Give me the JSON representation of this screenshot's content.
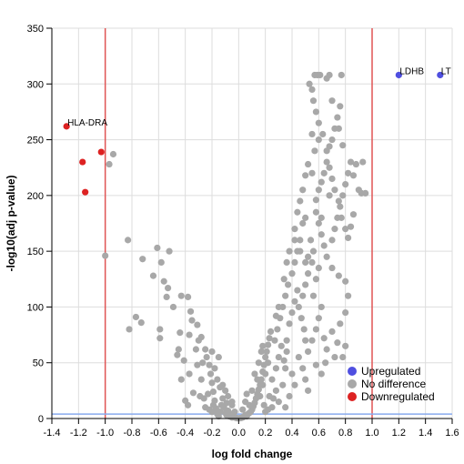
{
  "chart_data": {
    "type": "scatter",
    "xlabel": "log fold change",
    "ylabel": "-log10(adj p-value)",
    "xlim": [
      -1.4,
      1.6
    ],
    "ylim": [
      0,
      350
    ],
    "xticks": [
      -1.4,
      -1.2,
      -1.0,
      -0.8,
      -0.6,
      -0.4,
      -0.2,
      0.0,
      0.2,
      0.4,
      0.6,
      0.8,
      1.0,
      1.2,
      1.4,
      1.6
    ],
    "xtick_labels": [
      "-1.4",
      "-1.2",
      "-1.0",
      "-0.8",
      "-0.6",
      "-0.4",
      "-0.2",
      "0.0",
      "0.2",
      "0.4",
      "0.6",
      "0.8",
      "1.0",
      "1.2",
      "1.4",
      "1.6"
    ],
    "yticks": [
      0,
      50,
      100,
      150,
      200,
      250,
      300,
      350
    ],
    "ytick_labels": [
      "0",
      "50",
      "100",
      "150",
      "200",
      "250",
      "300",
      "350"
    ],
    "grid": true,
    "legend_position": "bottom-right",
    "thresholds": {
      "fold_change_lines": [
        -1.0,
        1.0
      ],
      "fold_change_color": "#e05555",
      "pvalue_line": 4,
      "pvalue_color": "#88aaee"
    },
    "series": [
      {
        "name": "Upregulated",
        "color": "#4f4fe0",
        "points": [
          [
            1.2,
            308
          ],
          [
            1.51,
            308
          ]
        ]
      },
      {
        "name": "No difference",
        "color": "#a8a8a8",
        "points": [
          [
            -0.97,
            228
          ],
          [
            -0.94,
            237
          ],
          [
            -1.0,
            146
          ],
          [
            -0.83,
            160
          ],
          [
            -0.72,
            143
          ],
          [
            -0.64,
            128
          ],
          [
            -0.61,
            153
          ],
          [
            -0.58,
            140
          ],
          [
            -0.56,
            123
          ],
          [
            -0.54,
            109
          ],
          [
            -0.53,
            117
          ],
          [
            -0.52,
            150
          ],
          [
            -0.49,
            100
          ],
          [
            -0.43,
            110
          ],
          [
            -0.38,
            109
          ],
          [
            -0.36,
            96
          ],
          [
            -0.35,
            88
          ],
          [
            -0.31,
            84
          ],
          [
            -0.28,
            73
          ],
          [
            -0.77,
            91
          ],
          [
            -0.73,
            86
          ],
          [
            -0.59,
            80
          ],
          [
            -0.59,
            72
          ],
          [
            -0.82,
            80
          ],
          [
            -0.44,
            77
          ],
          [
            -0.45,
            62
          ],
          [
            -0.37,
            75
          ],
          [
            -0.32,
            62
          ],
          [
            -0.41,
            52
          ],
          [
            -0.37,
            40
          ],
          [
            -0.31,
            48
          ],
          [
            -0.43,
            35
          ],
          [
            -0.34,
            23
          ],
          [
            -0.4,
            16
          ],
          [
            -0.38,
            12
          ],
          [
            -0.46,
            57
          ],
          [
            -0.3,
            70
          ],
          [
            -0.27,
            50
          ],
          [
            -0.28,
            35
          ],
          [
            -0.29,
            20
          ],
          [
            -0.25,
            62
          ],
          [
            -0.24,
            55
          ],
          [
            -0.22,
            48
          ],
          [
            -0.21,
            40
          ],
          [
            -0.2,
            32
          ],
          [
            -0.19,
            24
          ],
          [
            -0.18,
            16
          ],
          [
            -0.17,
            9
          ],
          [
            -0.16,
            4
          ],
          [
            -0.15,
            2
          ],
          [
            -0.14,
            6
          ],
          [
            -0.13,
            12
          ],
          [
            -0.12,
            18
          ],
          [
            -0.11,
            10
          ],
          [
            -0.1,
            5
          ],
          [
            -0.09,
            3
          ],
          [
            -0.08,
            7
          ],
          [
            -0.07,
            2
          ],
          [
            -0.06,
            4
          ],
          [
            -0.05,
            1
          ],
          [
            -0.04,
            2
          ],
          [
            -0.03,
            1
          ],
          [
            -0.02,
            0.5
          ],
          [
            -0.01,
            0.3
          ],
          [
            0.01,
            0.3
          ],
          [
            0.02,
            0.5
          ],
          [
            0.03,
            1
          ],
          [
            0.04,
            2
          ],
          [
            0.05,
            3
          ],
          [
            0.06,
            2
          ],
          [
            0.07,
            4
          ],
          [
            0.08,
            5
          ],
          [
            0.09,
            6
          ],
          [
            0.1,
            8
          ],
          [
            0.11,
            11
          ],
          [
            0.12,
            14
          ],
          [
            0.13,
            18
          ],
          [
            0.14,
            22
          ],
          [
            0.15,
            26
          ],
          [
            0.16,
            30
          ],
          [
            0.17,
            35
          ],
          [
            0.18,
            42
          ],
          [
            0.19,
            48
          ],
          [
            0.2,
            55
          ],
          [
            0.21,
            60
          ],
          [
            0.22,
            66
          ],
          [
            0.23,
            72
          ],
          [
            0.24,
            78
          ],
          [
            -0.08,
            20
          ],
          [
            -0.05,
            12
          ],
          [
            0.06,
            22
          ],
          [
            -0.12,
            30
          ],
          [
            0.12,
            40
          ],
          [
            0.15,
            50
          ],
          [
            0.18,
            65
          ],
          [
            -0.18,
            45
          ],
          [
            0.22,
            50
          ],
          [
            0.2,
            40
          ],
          [
            0.18,
            30
          ],
          [
            0.25,
            35
          ],
          [
            0.28,
            45
          ],
          [
            0.3,
            55
          ],
          [
            0.32,
            65
          ],
          [
            0.28,
            25
          ],
          [
            0.3,
            15
          ],
          [
            0.33,
            30
          ],
          [
            0.35,
            45
          ],
          [
            0.27,
            70
          ],
          [
            0.29,
            80
          ],
          [
            0.31,
            90
          ],
          [
            0.33,
            100
          ],
          [
            0.35,
            110
          ],
          [
            0.37,
            120
          ],
          [
            0.3,
            100
          ],
          [
            0.28,
            92
          ],
          [
            0.36,
            70
          ],
          [
            0.38,
            85
          ],
          [
            0.4,
            95
          ],
          [
            0.42,
            105
          ],
          [
            0.44,
            115
          ],
          [
            0.4,
            130
          ],
          [
            0.42,
            140
          ],
          [
            0.44,
            150
          ],
          [
            0.46,
            160
          ],
          [
            0.42,
            170
          ],
          [
            0.38,
            150
          ],
          [
            0.36,
            140
          ],
          [
            0.34,
            125
          ],
          [
            0.48,
            110
          ],
          [
            0.5,
            120
          ],
          [
            0.52,
            130
          ],
          [
            0.55,
            140
          ],
          [
            0.45,
            100
          ],
          [
            0.47,
            90
          ],
          [
            0.49,
            80
          ],
          [
            0.5,
            70
          ],
          [
            0.52,
            60
          ],
          [
            0.55,
            70
          ],
          [
            0.58,
            80
          ],
          [
            0.6,
            90
          ],
          [
            0.62,
            100
          ],
          [
            0.56,
            110
          ],
          [
            0.58,
            125
          ],
          [
            0.6,
            135
          ],
          [
            0.45,
            55
          ],
          [
            0.48,
            45
          ],
          [
            0.5,
            35
          ],
          [
            0.52,
            25
          ],
          [
            0.4,
            40
          ],
          [
            0.42,
            30
          ],
          [
            0.38,
            20
          ],
          [
            0.35,
            10
          ],
          [
            0.36,
            60
          ],
          [
            0.34,
            52
          ],
          [
            0.62,
            40
          ],
          [
            0.65,
            50
          ],
          [
            0.58,
            48
          ],
          [
            0.72,
            55
          ],
          [
            0.78,
            55
          ],
          [
            0.8,
            65
          ],
          [
            0.74,
            68
          ],
          [
            0.66,
            62
          ],
          [
            0.64,
            72
          ],
          [
            0.7,
            78
          ],
          [
            0.76,
            85
          ],
          [
            0.8,
            95
          ],
          [
            0.82,
            110
          ],
          [
            0.8,
            123
          ],
          [
            0.75,
            128
          ],
          [
            0.7,
            135
          ],
          [
            0.66,
            145
          ],
          [
            0.64,
            155
          ],
          [
            0.62,
            165
          ],
          [
            0.6,
            175
          ],
          [
            0.58,
            185
          ],
          [
            0.7,
            160
          ],
          [
            0.72,
            170
          ],
          [
            0.74,
            180
          ],
          [
            0.76,
            190
          ],
          [
            0.78,
            200
          ],
          [
            0.8,
            210
          ],
          [
            0.82,
            220
          ],
          [
            0.84,
            230
          ],
          [
            0.86,
            218
          ],
          [
            0.88,
            228
          ],
          [
            0.9,
            205
          ],
          [
            0.95,
            202
          ],
          [
            0.93,
            230
          ],
          [
            0.92,
            202
          ],
          [
            0.55,
            220
          ],
          [
            0.57,
            240
          ],
          [
            0.6,
            250
          ],
          [
            0.63,
            255
          ],
          [
            0.66,
            240
          ],
          [
            0.68,
            225
          ],
          [
            0.7,
            215
          ],
          [
            0.72,
            205
          ],
          [
            0.75,
            195
          ],
          [
            0.77,
            180
          ],
          [
            0.8,
            170
          ],
          [
            0.82,
            162
          ],
          [
            0.84,
            172
          ],
          [
            0.86,
            183
          ],
          [
            0.6,
            205
          ],
          [
            0.62,
            212
          ],
          [
            0.64,
            220
          ],
          [
            0.66,
            230
          ],
          [
            0.68,
            244
          ],
          [
            0.7,
            250
          ],
          [
            0.72,
            260
          ],
          [
            0.74,
            270
          ],
          [
            0.76,
            280
          ],
          [
            0.6,
            265
          ],
          [
            0.58,
            275
          ],
          [
            0.56,
            285
          ],
          [
            0.55,
            295
          ],
          [
            0.53,
            300
          ],
          [
            0.57,
            308
          ],
          [
            0.59,
            308
          ],
          [
            0.61,
            308
          ],
          [
            0.68,
            308
          ],
          [
            0.77,
            308
          ],
          [
            0.55,
            255
          ],
          [
            0.52,
            228
          ],
          [
            0.5,
            218
          ],
          [
            0.48,
            205
          ],
          [
            0.46,
            195
          ],
          [
            0.44,
            185
          ],
          [
            0.42,
            160
          ],
          [
            0.66,
            305
          ],
          [
            0.7,
            285
          ],
          [
            0.75,
            260
          ],
          [
            0.78,
            245
          ],
          [
            0.68,
            200
          ],
          [
            0.58,
            196
          ],
          [
            0.62,
            180
          ],
          [
            0.5,
            180
          ],
          [
            0.48,
            175
          ],
          [
            0.46,
            150
          ],
          [
            0.54,
            160
          ],
          [
            0.56,
            150
          ],
          [
            0.52,
            145
          ],
          [
            0.5,
            140
          ],
          [
            -0.25,
            10
          ],
          [
            -0.22,
            8
          ],
          [
            -0.2,
            6
          ],
          [
            0.25,
            10
          ],
          [
            0.22,
            8
          ],
          [
            0.2,
            6
          ],
          [
            0.26,
            18
          ],
          [
            -0.26,
            18
          ],
          [
            0.1,
            25
          ],
          [
            -0.1,
            25
          ],
          [
            0.05,
            15
          ],
          [
            -0.05,
            15
          ],
          [
            -0.16,
            35
          ],
          [
            -0.14,
            28
          ],
          [
            0.14,
            35
          ],
          [
            0.16,
            20
          ],
          [
            -0.15,
            55
          ],
          [
            -0.2,
            60
          ],
          [
            0.17,
            60
          ],
          [
            0.23,
            20
          ],
          [
            0.19,
            12
          ],
          [
            -0.19,
            12
          ],
          [
            -0.23,
            22
          ],
          [
            0.08,
            12
          ],
          [
            -0.03,
            6
          ],
          [
            0.03,
            8
          ],
          [
            -0.09,
            14
          ]
        ]
      },
      {
        "name": "Downregulated",
        "color": "#dd2222",
        "points": [
          [
            -1.29,
            262
          ],
          [
            -1.03,
            239
          ],
          [
            -1.17,
            230
          ],
          [
            -1.15,
            203
          ]
        ]
      }
    ],
    "annotations": [
      {
        "label": "HLA-DRA",
        "x": -1.29,
        "y": 262
      },
      {
        "label": "LDHB",
        "x": 1.2,
        "y": 308
      },
      {
        "label": "LT",
        "x": 1.51,
        "y": 308
      }
    ]
  }
}
